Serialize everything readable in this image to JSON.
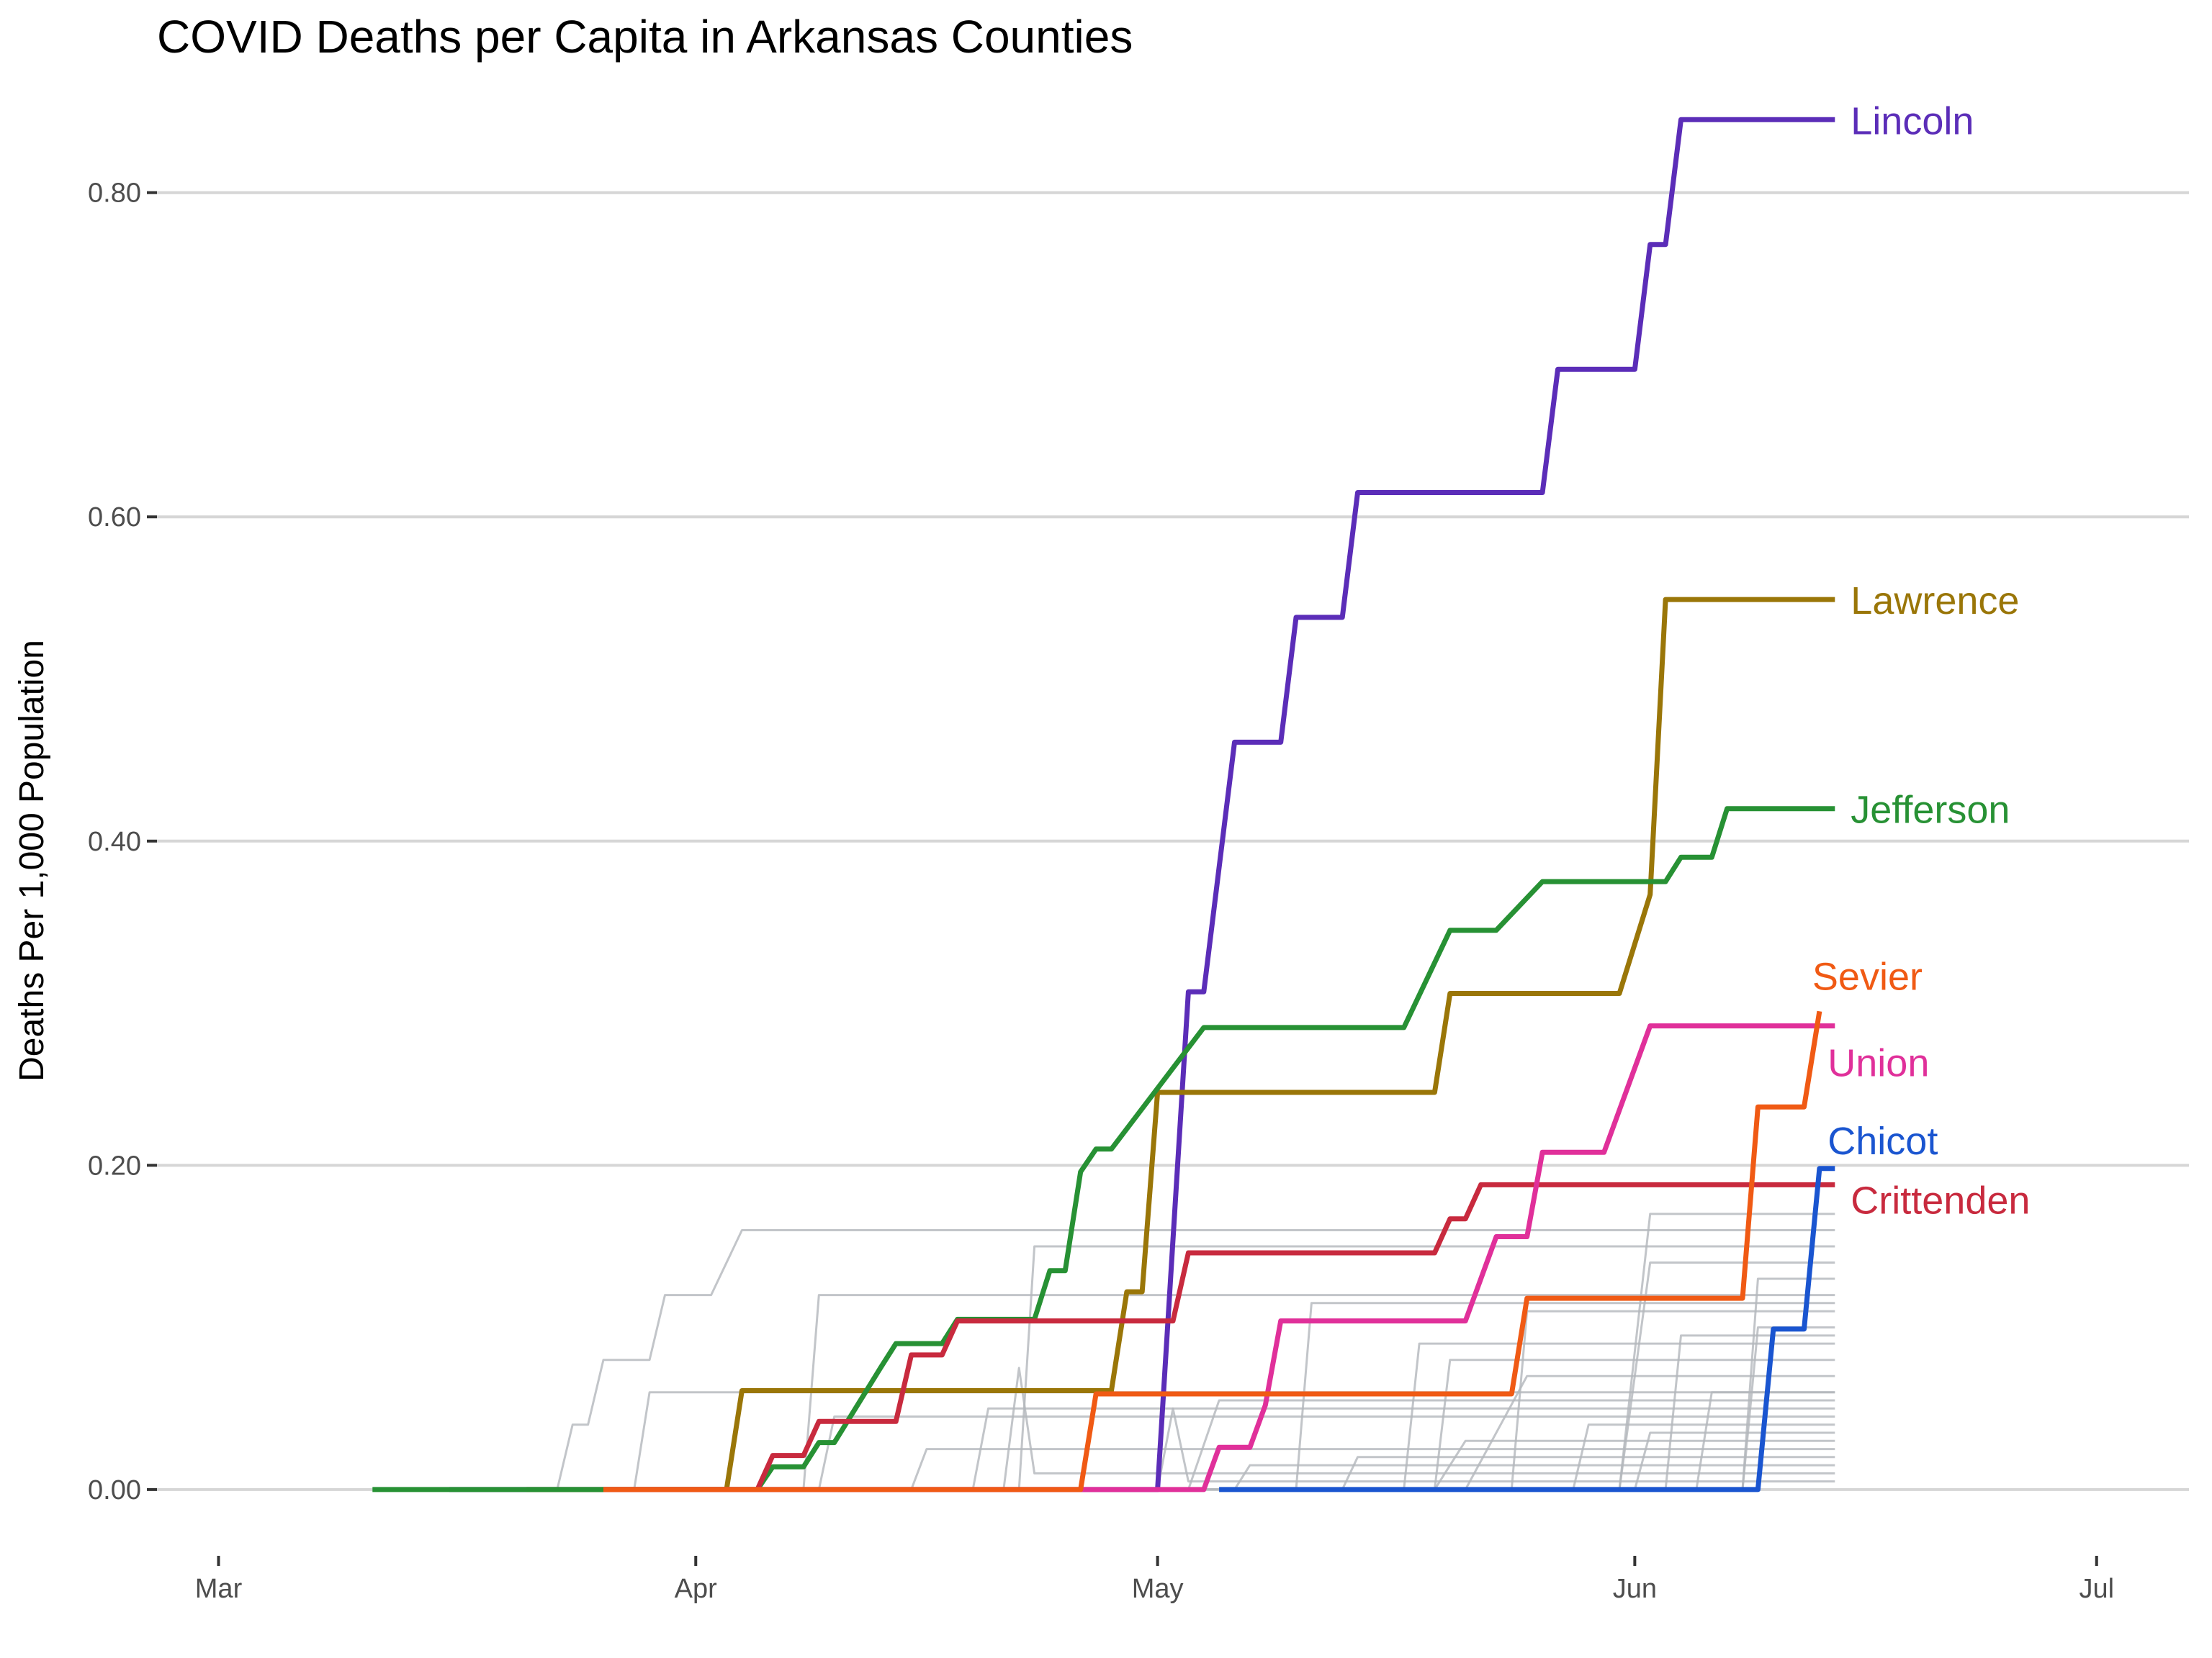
{
  "chart_data": {
    "type": "line",
    "title": "COVID Deaths per Capita in Arkansas Counties",
    "xlabel": "",
    "ylabel": "Deaths Per 1,000 Population",
    "x_axis": {
      "type": "date",
      "range": [
        "2020-02-26",
        "2020-07-07"
      ],
      "ticks": [
        {
          "date": "2020-03-01",
          "label": "Mar"
        },
        {
          "date": "2020-04-01",
          "label": "Apr"
        },
        {
          "date": "2020-05-01",
          "label": "May"
        },
        {
          "date": "2020-06-01",
          "label": "Jun"
        },
        {
          "date": "2020-07-01",
          "label": "Jul"
        }
      ]
    },
    "y_axis": {
      "range": [
        -0.04,
        0.87
      ],
      "ticks": [
        {
          "value": 0,
          "label": "0.00"
        },
        {
          "value": 0.2,
          "label": "0.20"
        },
        {
          "value": 0.4,
          "label": "0.40"
        },
        {
          "value": 0.6,
          "label": "0.60"
        },
        {
          "value": 0.8,
          "label": "0.80"
        }
      ]
    },
    "grid": true,
    "legend": "none",
    "highlighted_series": [
      {
        "name": "Lincoln",
        "color": "#5b2db8",
        "points": [
          [
            "2020-03-16",
            0
          ],
          [
            "2020-05-01",
            0
          ],
          [
            "2020-05-02",
            0.154
          ],
          [
            "2020-05-03",
            0.307
          ],
          [
            "2020-05-04",
            0.307
          ],
          [
            "2020-05-06",
            0.461
          ],
          [
            "2020-05-09",
            0.461
          ],
          [
            "2020-05-10",
            0.538
          ],
          [
            "2020-05-13",
            0.538
          ],
          [
            "2020-05-14",
            0.615
          ],
          [
            "2020-05-26",
            0.615
          ],
          [
            "2020-05-27",
            0.691
          ],
          [
            "2020-06-01",
            0.691
          ],
          [
            "2020-06-02",
            0.768
          ],
          [
            "2020-06-03",
            0.768
          ],
          [
            "2020-06-04",
            0.845
          ],
          [
            "2020-06-14",
            0.845
          ]
        ]
      },
      {
        "name": "Lawrence",
        "color": "#9a7608",
        "points": [
          [
            "2020-03-21",
            0
          ],
          [
            "2020-04-03",
            0
          ],
          [
            "2020-04-04",
            0.061
          ],
          [
            "2020-04-28",
            0.061
          ],
          [
            "2020-04-29",
            0.122
          ],
          [
            "2020-04-30",
            0.122
          ],
          [
            "2020-05-01",
            0.245
          ],
          [
            "2020-05-19",
            0.245
          ],
          [
            "2020-05-20",
            0.306
          ],
          [
            "2020-05-31",
            0.306
          ],
          [
            "2020-06-02",
            0.367
          ],
          [
            "2020-06-03",
            0.549
          ],
          [
            "2020-06-14",
            0.549
          ]
        ]
      },
      {
        "name": "Jefferson",
        "color": "#279134",
        "points": [
          [
            "2020-03-11",
            0
          ],
          [
            "2020-04-05",
            0
          ],
          [
            "2020-04-06",
            0.014
          ],
          [
            "2020-04-08",
            0.014
          ],
          [
            "2020-04-09",
            0.029
          ],
          [
            "2020-04-10",
            0.029
          ],
          [
            "2020-04-13",
            0.075
          ],
          [
            "2020-04-14",
            0.09
          ],
          [
            "2020-04-17",
            0.09
          ],
          [
            "2020-04-18",
            0.105
          ],
          [
            "2020-04-23",
            0.105
          ],
          [
            "2020-04-24",
            0.135
          ],
          [
            "2020-04-25",
            0.135
          ],
          [
            "2020-04-26",
            0.196
          ],
          [
            "2020-04-27",
            0.21
          ],
          [
            "2020-04-28",
            0.21
          ],
          [
            "2020-05-04",
            0.285
          ],
          [
            "2020-05-17",
            0.285
          ],
          [
            "2020-05-20",
            0.345
          ],
          [
            "2020-05-23",
            0.345
          ],
          [
            "2020-05-26",
            0.375
          ],
          [
            "2020-06-03",
            0.375
          ],
          [
            "2020-06-04",
            0.39
          ],
          [
            "2020-06-06",
            0.39
          ],
          [
            "2020-06-07",
            0.42
          ],
          [
            "2020-06-14",
            0.42
          ]
        ]
      },
      {
        "name": "Crittenden",
        "color": "#c82a3e",
        "points": [
          [
            "2020-03-26",
            0
          ],
          [
            "2020-04-05",
            0
          ],
          [
            "2020-04-06",
            0.021
          ],
          [
            "2020-04-08",
            0.021
          ],
          [
            "2020-04-09",
            0.042
          ],
          [
            "2020-04-14",
            0.042
          ],
          [
            "2020-04-15",
            0.083
          ],
          [
            "2020-04-17",
            0.083
          ],
          [
            "2020-04-18",
            0.104
          ],
          [
            "2020-05-02",
            0.104
          ],
          [
            "2020-05-03",
            0.146
          ],
          [
            "2020-05-19",
            0.146
          ],
          [
            "2020-05-20",
            0.167
          ],
          [
            "2020-05-21",
            0.167
          ],
          [
            "2020-05-22",
            0.188
          ],
          [
            "2020-06-14",
            0.188
          ]
        ]
      },
      {
        "name": "Union",
        "color": "#e0309a",
        "points": [
          [
            "2020-03-26",
            0
          ],
          [
            "2020-05-04",
            0
          ],
          [
            "2020-05-05",
            0.026
          ],
          [
            "2020-05-07",
            0.026
          ],
          [
            "2020-05-08",
            0.052
          ],
          [
            "2020-05-09",
            0.104
          ],
          [
            "2020-05-21",
            0.104
          ],
          [
            "2020-05-23",
            0.156
          ],
          [
            "2020-05-25",
            0.156
          ],
          [
            "2020-05-26",
            0.208
          ],
          [
            "2020-05-30",
            0.208
          ],
          [
            "2020-06-02",
            0.286
          ],
          [
            "2020-06-14",
            0.286
          ]
        ]
      },
      {
        "name": "Sevier",
        "color": "#f05a14",
        "points": [
          [
            "2020-03-26",
            0
          ],
          [
            "2020-04-26",
            0
          ],
          [
            "2020-04-27",
            0.059
          ],
          [
            "2020-05-24",
            0.059
          ],
          [
            "2020-05-25",
            0.118
          ],
          [
            "2020-06-08",
            0.118
          ],
          [
            "2020-06-09",
            0.236
          ],
          [
            "2020-06-12",
            0.236
          ],
          [
            "2020-06-13",
            0.295
          ]
        ]
      },
      {
        "name": "Chicot",
        "color": "#1a55d0",
        "points": [
          [
            "2020-05-05",
            0
          ],
          [
            "2020-06-09",
            0
          ],
          [
            "2020-06-10",
            0.099
          ],
          [
            "2020-06-12",
            0.099
          ],
          [
            "2020-06-13",
            0.198
          ],
          [
            "2020-06-14",
            0.198
          ]
        ]
      }
    ],
    "background_series": [
      {
        "points": [
          [
            "2020-03-19",
            0
          ],
          [
            "2020-03-23",
            0
          ],
          [
            "2020-03-24",
            0.04
          ],
          [
            "2020-03-25",
            0.04
          ],
          [
            "2020-03-26",
            0.08
          ],
          [
            "2020-03-29",
            0.08
          ],
          [
            "2020-03-30",
            0.12
          ],
          [
            "2020-04-02",
            0.12
          ],
          [
            "2020-04-04",
            0.16
          ],
          [
            "2020-06-14",
            0.16
          ]
        ]
      },
      {
        "points": [
          [
            "2020-03-26",
            0
          ],
          [
            "2020-03-28",
            0
          ],
          [
            "2020-03-29",
            0.06
          ],
          [
            "2020-06-14",
            0.06
          ]
        ]
      },
      {
        "points": [
          [
            "2020-03-26",
            0
          ],
          [
            "2020-04-08",
            0
          ],
          [
            "2020-04-09",
            0.12
          ],
          [
            "2020-06-14",
            0.12
          ]
        ]
      },
      {
        "points": [
          [
            "2020-03-26",
            0
          ],
          [
            "2020-04-22",
            0
          ],
          [
            "2020-04-23",
            0.15
          ],
          [
            "2020-06-14",
            0.15
          ]
        ]
      },
      {
        "points": [
          [
            "2020-03-26",
            0
          ],
          [
            "2020-05-10",
            0
          ],
          [
            "2020-05-11",
            0.115
          ],
          [
            "2020-06-14",
            0.115
          ]
        ]
      },
      {
        "points": [
          [
            "2020-03-26",
            0
          ],
          [
            "2020-05-24",
            0
          ],
          [
            "2020-05-25",
            0.11
          ],
          [
            "2020-06-14",
            0.11
          ]
        ]
      },
      {
        "points": [
          [
            "2020-03-26",
            0
          ],
          [
            "2020-05-31",
            0
          ],
          [
            "2020-06-02",
            0.17
          ],
          [
            "2020-06-14",
            0.17
          ]
        ]
      },
      {
        "points": [
          [
            "2020-03-26",
            0
          ],
          [
            "2020-05-31",
            0
          ],
          [
            "2020-06-02",
            0.14
          ],
          [
            "2020-06-14",
            0.14
          ]
        ]
      },
      {
        "points": [
          [
            "2020-03-26",
            0
          ],
          [
            "2020-06-08",
            0
          ],
          [
            "2020-06-09",
            0.13
          ],
          [
            "2020-06-14",
            0.13
          ]
        ]
      },
      {
        "points": [
          [
            "2020-03-26",
            0
          ],
          [
            "2020-06-08",
            0
          ],
          [
            "2020-06-09",
            0.1
          ],
          [
            "2020-06-14",
            0.1
          ]
        ]
      },
      {
        "points": [
          [
            "2020-03-26",
            0
          ],
          [
            "2020-05-03",
            0
          ],
          [
            "2020-05-05",
            0.055
          ],
          [
            "2020-06-14",
            0.055
          ]
        ]
      },
      {
        "points": [
          [
            "2020-03-26",
            0
          ],
          [
            "2020-04-19",
            0
          ],
          [
            "2020-04-20",
            0.05
          ],
          [
            "2020-06-14",
            0.05
          ]
        ]
      },
      {
        "points": [
          [
            "2020-03-26",
            0
          ],
          [
            "2020-04-09",
            0
          ],
          [
            "2020-04-10",
            0.045
          ],
          [
            "2020-06-14",
            0.045
          ]
        ]
      },
      {
        "points": [
          [
            "2020-03-26",
            0
          ],
          [
            "2020-05-19",
            0
          ],
          [
            "2020-05-20",
            0.08
          ],
          [
            "2020-06-14",
            0.08
          ]
        ]
      },
      {
        "points": [
          [
            "2020-03-26",
            0
          ],
          [
            "2020-05-21",
            0
          ],
          [
            "2020-05-25",
            0.07
          ],
          [
            "2020-06-14",
            0.07
          ]
        ]
      },
      {
        "points": [
          [
            "2020-03-26",
            0
          ],
          [
            "2020-05-19",
            0
          ],
          [
            "2020-05-21",
            0.03
          ],
          [
            "2020-06-14",
            0.03
          ]
        ]
      },
      {
        "points": [
          [
            "2020-03-26",
            0
          ],
          [
            "2020-05-13",
            0
          ],
          [
            "2020-05-14",
            0.02
          ],
          [
            "2020-06-14",
            0.02
          ]
        ]
      },
      {
        "points": [
          [
            "2020-03-26",
            0
          ],
          [
            "2020-05-17",
            0
          ],
          [
            "2020-05-18",
            0.09
          ],
          [
            "2020-06-14",
            0.09
          ]
        ]
      },
      {
        "points": [
          [
            "2020-03-26",
            0
          ],
          [
            "2020-06-03",
            0
          ],
          [
            "2020-06-04",
            0.095
          ],
          [
            "2020-06-14",
            0.095
          ]
        ]
      },
      {
        "points": [
          [
            "2020-03-26",
            0
          ],
          [
            "2020-04-21",
            0
          ],
          [
            "2020-04-22",
            0.075
          ],
          [
            "2020-04-23",
            0.01
          ],
          [
            "2020-06-14",
            0.01
          ]
        ]
      },
      {
        "points": [
          [
            "2020-03-26",
            0
          ],
          [
            "2020-05-01",
            0
          ],
          [
            "2020-05-02",
            0.05
          ],
          [
            "2020-05-03",
            0.005
          ],
          [
            "2020-06-14",
            0.005
          ]
        ]
      },
      {
        "points": [
          [
            "2020-03-26",
            0
          ],
          [
            "2020-05-28",
            0
          ],
          [
            "2020-05-29",
            0.04
          ],
          [
            "2020-06-14",
            0.04
          ]
        ]
      },
      {
        "points": [
          [
            "2020-03-26",
            0
          ],
          [
            "2020-06-01",
            0
          ],
          [
            "2020-06-02",
            0.035
          ],
          [
            "2020-06-14",
            0.035
          ]
        ]
      },
      {
        "points": [
          [
            "2020-03-26",
            0
          ],
          [
            "2020-04-15",
            0
          ],
          [
            "2020-04-16",
            0.025
          ],
          [
            "2020-06-14",
            0.025
          ]
        ]
      },
      {
        "points": [
          [
            "2020-03-26",
            0
          ],
          [
            "2020-05-06",
            0
          ],
          [
            "2020-05-07",
            0.015
          ],
          [
            "2020-06-14",
            0.015
          ]
        ]
      },
      {
        "points": [
          [
            "2020-03-26",
            0
          ],
          [
            "2020-06-05",
            0
          ],
          [
            "2020-06-06",
            0.06
          ],
          [
            "2020-06-14",
            0.06
          ]
        ]
      }
    ]
  }
}
